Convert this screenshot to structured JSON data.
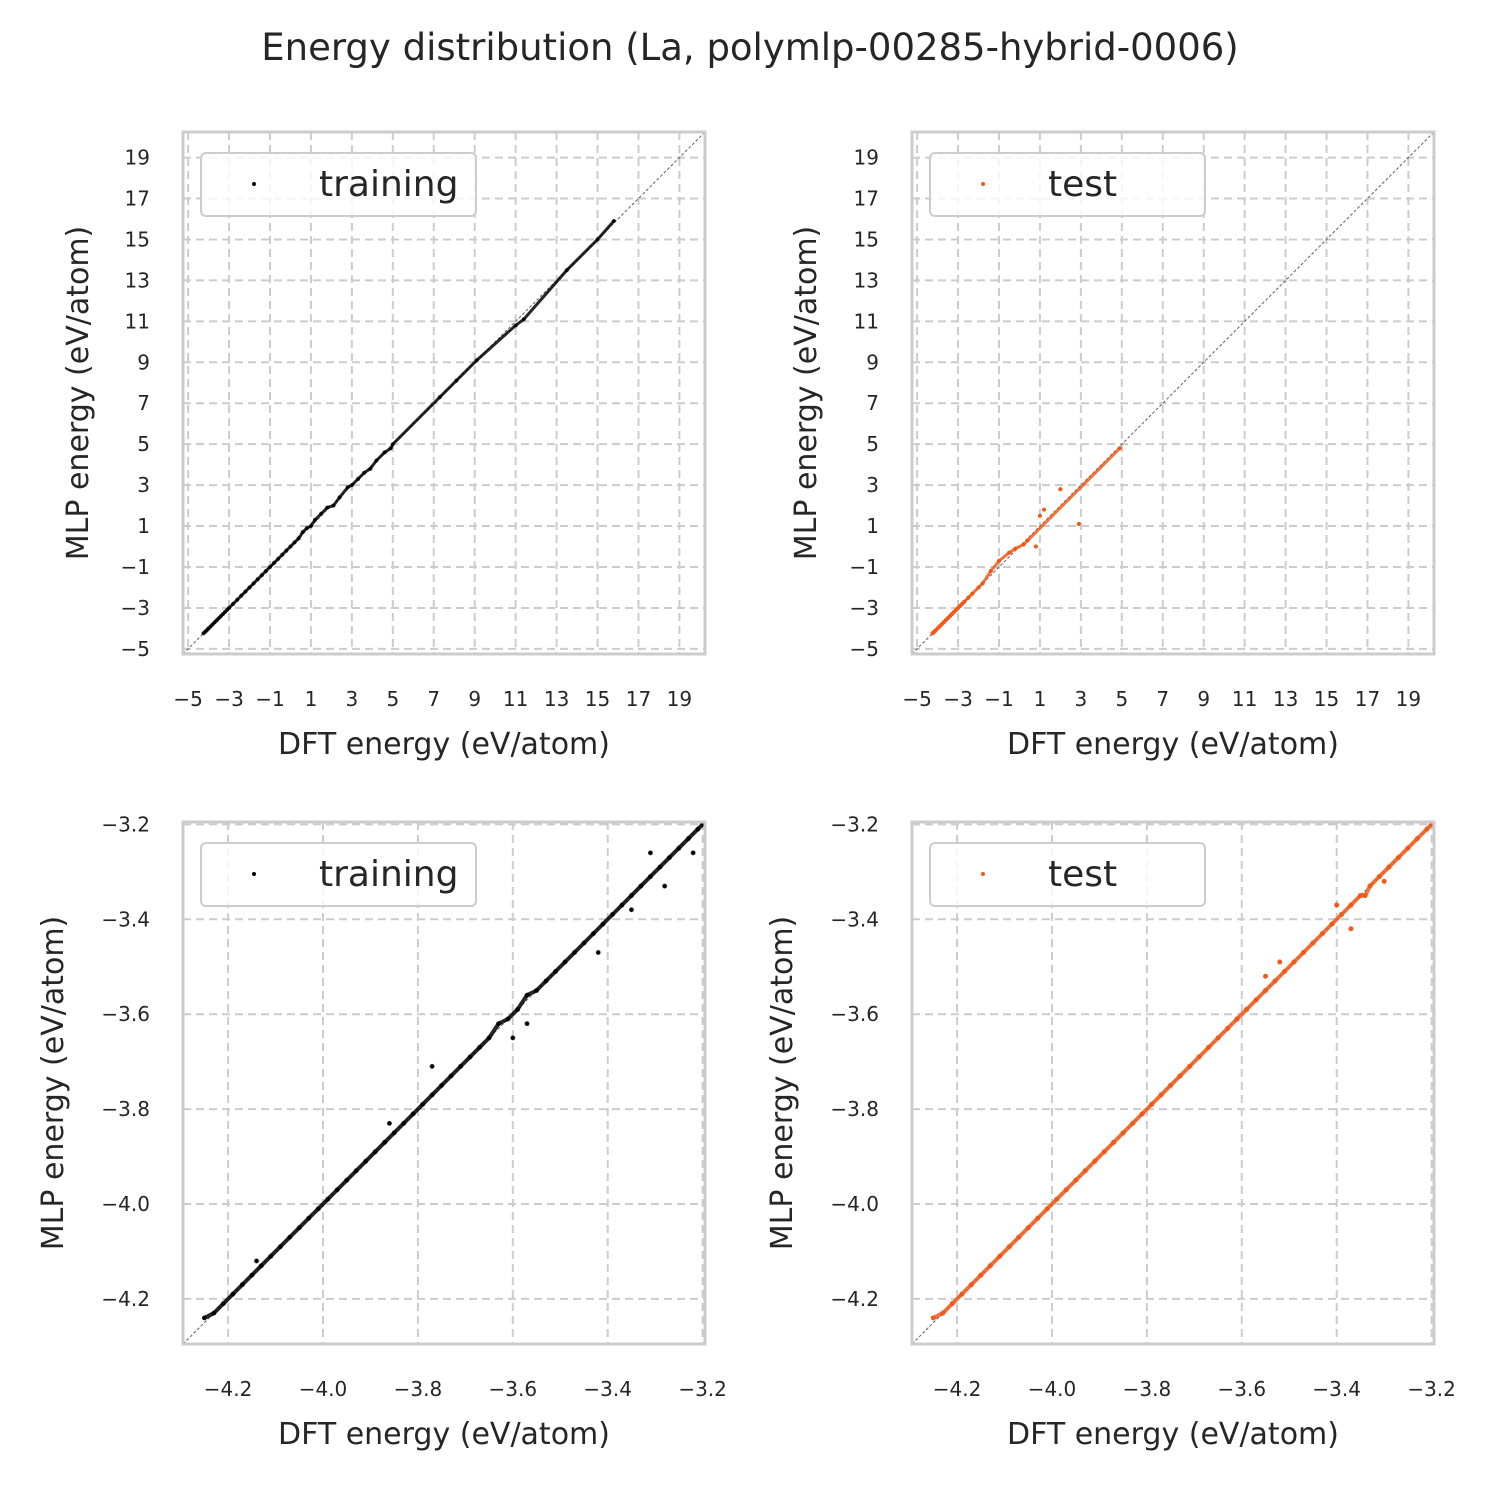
{
  "suptitle": "Energy distribution (La, polymlp-00285-hybrid-0006)",
  "colors": {
    "training": "#000000",
    "test": "#f05a1a",
    "grid": "#cccccc",
    "frame": "#cccccc",
    "diagonal": "#606060"
  },
  "chart_data": [
    {
      "type": "scatter",
      "panel": "top-left",
      "xlabel": "DFT energy (eV/atom)",
      "ylabel": "MLP energy (eV/atom)",
      "xlim": [
        -5.25,
        20.25
      ],
      "ylim": [
        -5.25,
        20.25
      ],
      "xticks": [
        -5,
        -3,
        -1,
        1,
        3,
        5,
        7,
        9,
        11,
        13,
        15,
        17,
        19
      ],
      "yticks": [
        -5,
        -3,
        -1,
        1,
        3,
        5,
        7,
        9,
        11,
        13,
        15,
        17,
        19
      ],
      "xtick_labels": [
        "−5",
        "−3",
        "−1",
        "1",
        "3",
        "5",
        "7",
        "9",
        "11",
        "13",
        "15",
        "17",
        "19"
      ],
      "ytick_labels": [
        "−5",
        "−3",
        "−1",
        "1",
        "3",
        "5",
        "7",
        "9",
        "11",
        "13",
        "15",
        "17",
        "19"
      ],
      "grid": true,
      "legend_loc": "upper-left",
      "diagonal": true,
      "series": [
        {
          "name": "training",
          "color": "#000000",
          "x": [
            -4.25,
            -4.2,
            -4.15,
            -4.1,
            -4.05,
            -4.0,
            -3.9,
            -3.8,
            -3.7,
            -3.6,
            -3.5,
            -3.4,
            -3.3,
            -3.2,
            -3.1,
            -3.0,
            -2.8,
            -2.6,
            -2.4,
            -2.2,
            -2.0,
            -1.8,
            -1.6,
            -1.4,
            -1.2,
            -1.0,
            -0.8,
            -0.6,
            -0.4,
            -0.2,
            0.0,
            0.2,
            0.4,
            0.6,
            0.8,
            1.0,
            1.2,
            1.5,
            1.8,
            2.1,
            2.4,
            2.8,
            3.0,
            3.3,
            3.6,
            3.9,
            4.2,
            4.6,
            4.9,
            5.0,
            7.3,
            8.1,
            9.1,
            11.0,
            11.4,
            13.5,
            15.0,
            15.8
          ],
          "y": [
            -4.24,
            -4.2,
            -4.15,
            -4.1,
            -4.05,
            -4.0,
            -3.9,
            -3.8,
            -3.7,
            -3.6,
            -3.5,
            -3.4,
            -3.3,
            -3.2,
            -3.1,
            -3.0,
            -2.8,
            -2.6,
            -2.4,
            -2.2,
            -2.0,
            -1.8,
            -1.6,
            -1.4,
            -1.2,
            -1.0,
            -0.8,
            -0.6,
            -0.4,
            -0.2,
            0.0,
            0.2,
            0.4,
            0.7,
            0.9,
            1.0,
            1.3,
            1.6,
            1.9,
            2.0,
            2.4,
            2.9,
            3.0,
            3.3,
            3.6,
            3.8,
            4.2,
            4.6,
            4.8,
            5.0,
            7.3,
            8.1,
            9.1,
            10.8,
            11.1,
            13.5,
            15.0,
            15.9
          ]
        }
      ]
    },
    {
      "type": "scatter",
      "panel": "top-right",
      "xlabel": "DFT energy (eV/atom)",
      "ylabel": "MLP energy (eV/atom)",
      "xlim": [
        -5.25,
        20.25
      ],
      "ylim": [
        -5.25,
        20.25
      ],
      "xticks": [
        -5,
        -3,
        -1,
        1,
        3,
        5,
        7,
        9,
        11,
        13,
        15,
        17,
        19
      ],
      "yticks": [
        -5,
        -3,
        -1,
        1,
        3,
        5,
        7,
        9,
        11,
        13,
        15,
        17,
        19
      ],
      "xtick_labels": [
        "−5",
        "−3",
        "−1",
        "1",
        "3",
        "5",
        "7",
        "9",
        "11",
        "13",
        "15",
        "17",
        "19"
      ],
      "ytick_labels": [
        "−5",
        "−3",
        "−1",
        "1",
        "3",
        "5",
        "7",
        "9",
        "11",
        "13",
        "15",
        "17",
        "19"
      ],
      "grid": true,
      "legend_loc": "upper-left",
      "diagonal": true,
      "series": [
        {
          "name": "test",
          "color": "#f05a1a",
          "x": [
            -4.25,
            -4.2,
            -4.15,
            -4.1,
            -4.0,
            -3.9,
            -3.8,
            -3.7,
            -3.6,
            -3.5,
            -3.4,
            -3.3,
            -3.2,
            -3.1,
            -3.0,
            -2.9,
            -2.8,
            -2.7,
            -2.5,
            -2.3,
            -2.0,
            -1.8,
            -1.4,
            -1.0,
            -0.5,
            -0.2,
            0.2,
            0.4,
            0.8,
            1.2,
            1.0,
            2.0,
            2.9,
            4.9
          ],
          "y": [
            -4.24,
            -4.2,
            -4.15,
            -4.1,
            -4.0,
            -3.9,
            -3.8,
            -3.7,
            -3.6,
            -3.5,
            -3.4,
            -3.3,
            -3.2,
            -3.1,
            -3.0,
            -2.9,
            -2.8,
            -2.7,
            -2.5,
            -2.3,
            -2.0,
            -1.8,
            -1.2,
            -0.7,
            -0.3,
            -0.1,
            0.1,
            0.3,
            0.0,
            1.8,
            1.5,
            2.8,
            1.1,
            4.8
          ]
        }
      ]
    },
    {
      "type": "scatter",
      "panel": "bottom-left",
      "xlabel": "DFT energy (eV/atom)",
      "ylabel": "MLP energy (eV/atom)",
      "xlim": [
        -4.295,
        -3.195
      ],
      "ylim": [
        -4.295,
        -3.195
      ],
      "xticks": [
        -4.2,
        -4.0,
        -3.8,
        -3.6,
        -3.4,
        -3.2
      ],
      "yticks": [
        -4.2,
        -4.0,
        -3.8,
        -3.6,
        -3.4,
        -3.2
      ],
      "xtick_labels": [
        "−4.2",
        "−4.0",
        "−3.8",
        "−3.6",
        "−3.4",
        "−3.2"
      ],
      "ytick_labels": [
        "−4.2",
        "−4.0",
        "−3.8",
        "−3.6",
        "−3.4",
        "−3.2"
      ],
      "grid": true,
      "legend_loc": "upper-left",
      "diagonal": true,
      "series": [
        {
          "name": "training",
          "color": "#000000",
          "x": [
            -4.25,
            -4.23,
            -4.21,
            -4.19,
            -4.17,
            -4.15,
            -4.13,
            -4.11,
            -4.09,
            -4.07,
            -4.05,
            -4.03,
            -4.01,
            -3.99,
            -3.97,
            -3.95,
            -3.93,
            -3.91,
            -3.89,
            -3.87,
            -3.85,
            -3.83,
            -3.81,
            -3.79,
            -3.77,
            -3.75,
            -3.73,
            -3.71,
            -3.69,
            -3.67,
            -3.65,
            -3.63,
            -3.61,
            -3.59,
            -3.57,
            -3.55,
            -3.53,
            -3.51,
            -3.49,
            -3.47,
            -3.45,
            -3.43,
            -3.41,
            -3.39,
            -3.37,
            -3.35,
            -3.33,
            -3.31,
            -3.29,
            -3.27,
            -3.25,
            -3.23,
            -3.21,
            -3.2,
            -4.14,
            -3.86,
            -3.77,
            -3.6,
            -3.57,
            -3.42,
            -3.35,
            -3.31,
            -3.28,
            -3.22
          ],
          "y": [
            -4.24,
            -4.23,
            -4.21,
            -4.19,
            -4.17,
            -4.15,
            -4.13,
            -4.11,
            -4.09,
            -4.07,
            -4.05,
            -4.03,
            -4.01,
            -3.99,
            -3.97,
            -3.95,
            -3.93,
            -3.91,
            -3.89,
            -3.87,
            -3.85,
            -3.83,
            -3.81,
            -3.79,
            -3.77,
            -3.75,
            -3.73,
            -3.71,
            -3.69,
            -3.67,
            -3.65,
            -3.62,
            -3.61,
            -3.59,
            -3.56,
            -3.55,
            -3.53,
            -3.51,
            -3.49,
            -3.47,
            -3.45,
            -3.43,
            -3.41,
            -3.39,
            -3.37,
            -3.35,
            -3.33,
            -3.31,
            -3.29,
            -3.27,
            -3.25,
            -3.23,
            -3.21,
            -3.2,
            -4.12,
            -3.83,
            -3.71,
            -3.65,
            -3.62,
            -3.47,
            -3.38,
            -3.26,
            -3.33,
            -3.26
          ]
        }
      ]
    },
    {
      "type": "scatter",
      "panel": "bottom-right",
      "xlabel": "DFT energy (eV/atom)",
      "ylabel": "MLP energy (eV/atom)",
      "xlim": [
        -4.295,
        -3.195
      ],
      "ylim": [
        -4.295,
        -3.195
      ],
      "xticks": [
        -4.2,
        -4.0,
        -3.8,
        -3.6,
        -3.4,
        -3.2
      ],
      "yticks": [
        -4.2,
        -4.0,
        -3.8,
        -3.6,
        -3.4,
        -3.2
      ],
      "xtick_labels": [
        "−4.2",
        "−4.0",
        "−3.8",
        "−3.6",
        "−3.4",
        "−3.2"
      ],
      "ytick_labels": [
        "−4.2",
        "−4.0",
        "−3.8",
        "−3.6",
        "−3.4",
        "−3.2"
      ],
      "grid": true,
      "legend_loc": "upper-left",
      "diagonal": true,
      "series": [
        {
          "name": "test",
          "color": "#f05a1a",
          "x": [
            -4.25,
            -4.23,
            -4.21,
            -4.19,
            -4.17,
            -4.15,
            -4.13,
            -4.11,
            -4.09,
            -4.07,
            -4.05,
            -4.03,
            -4.01,
            -3.99,
            -3.97,
            -3.95,
            -3.93,
            -3.91,
            -3.89,
            -3.87,
            -3.85,
            -3.83,
            -3.81,
            -3.79,
            -3.77,
            -3.75,
            -3.73,
            -3.71,
            -3.69,
            -3.67,
            -3.65,
            -3.63,
            -3.61,
            -3.59,
            -3.57,
            -3.55,
            -3.53,
            -3.51,
            -3.49,
            -3.47,
            -3.45,
            -3.43,
            -3.41,
            -3.39,
            -3.37,
            -3.35,
            -3.33,
            -3.31,
            -3.29,
            -3.27,
            -3.25,
            -3.23,
            -3.21,
            -3.2,
            -3.55,
            -3.52,
            -3.4,
            -3.37,
            -3.34,
            -3.3
          ],
          "y": [
            -4.24,
            -4.23,
            -4.21,
            -4.19,
            -4.17,
            -4.15,
            -4.13,
            -4.11,
            -4.09,
            -4.07,
            -4.05,
            -4.03,
            -4.01,
            -3.99,
            -3.97,
            -3.95,
            -3.93,
            -3.91,
            -3.89,
            -3.87,
            -3.85,
            -3.83,
            -3.81,
            -3.79,
            -3.77,
            -3.75,
            -3.73,
            -3.71,
            -3.69,
            -3.67,
            -3.65,
            -3.63,
            -3.61,
            -3.59,
            -3.57,
            -3.55,
            -3.53,
            -3.51,
            -3.49,
            -3.47,
            -3.45,
            -3.43,
            -3.41,
            -3.39,
            -3.37,
            -3.35,
            -3.33,
            -3.31,
            -3.29,
            -3.27,
            -3.25,
            -3.23,
            -3.21,
            -3.2,
            -3.52,
            -3.49,
            -3.37,
            -3.42,
            -3.35,
            -3.32
          ]
        }
      ]
    }
  ]
}
